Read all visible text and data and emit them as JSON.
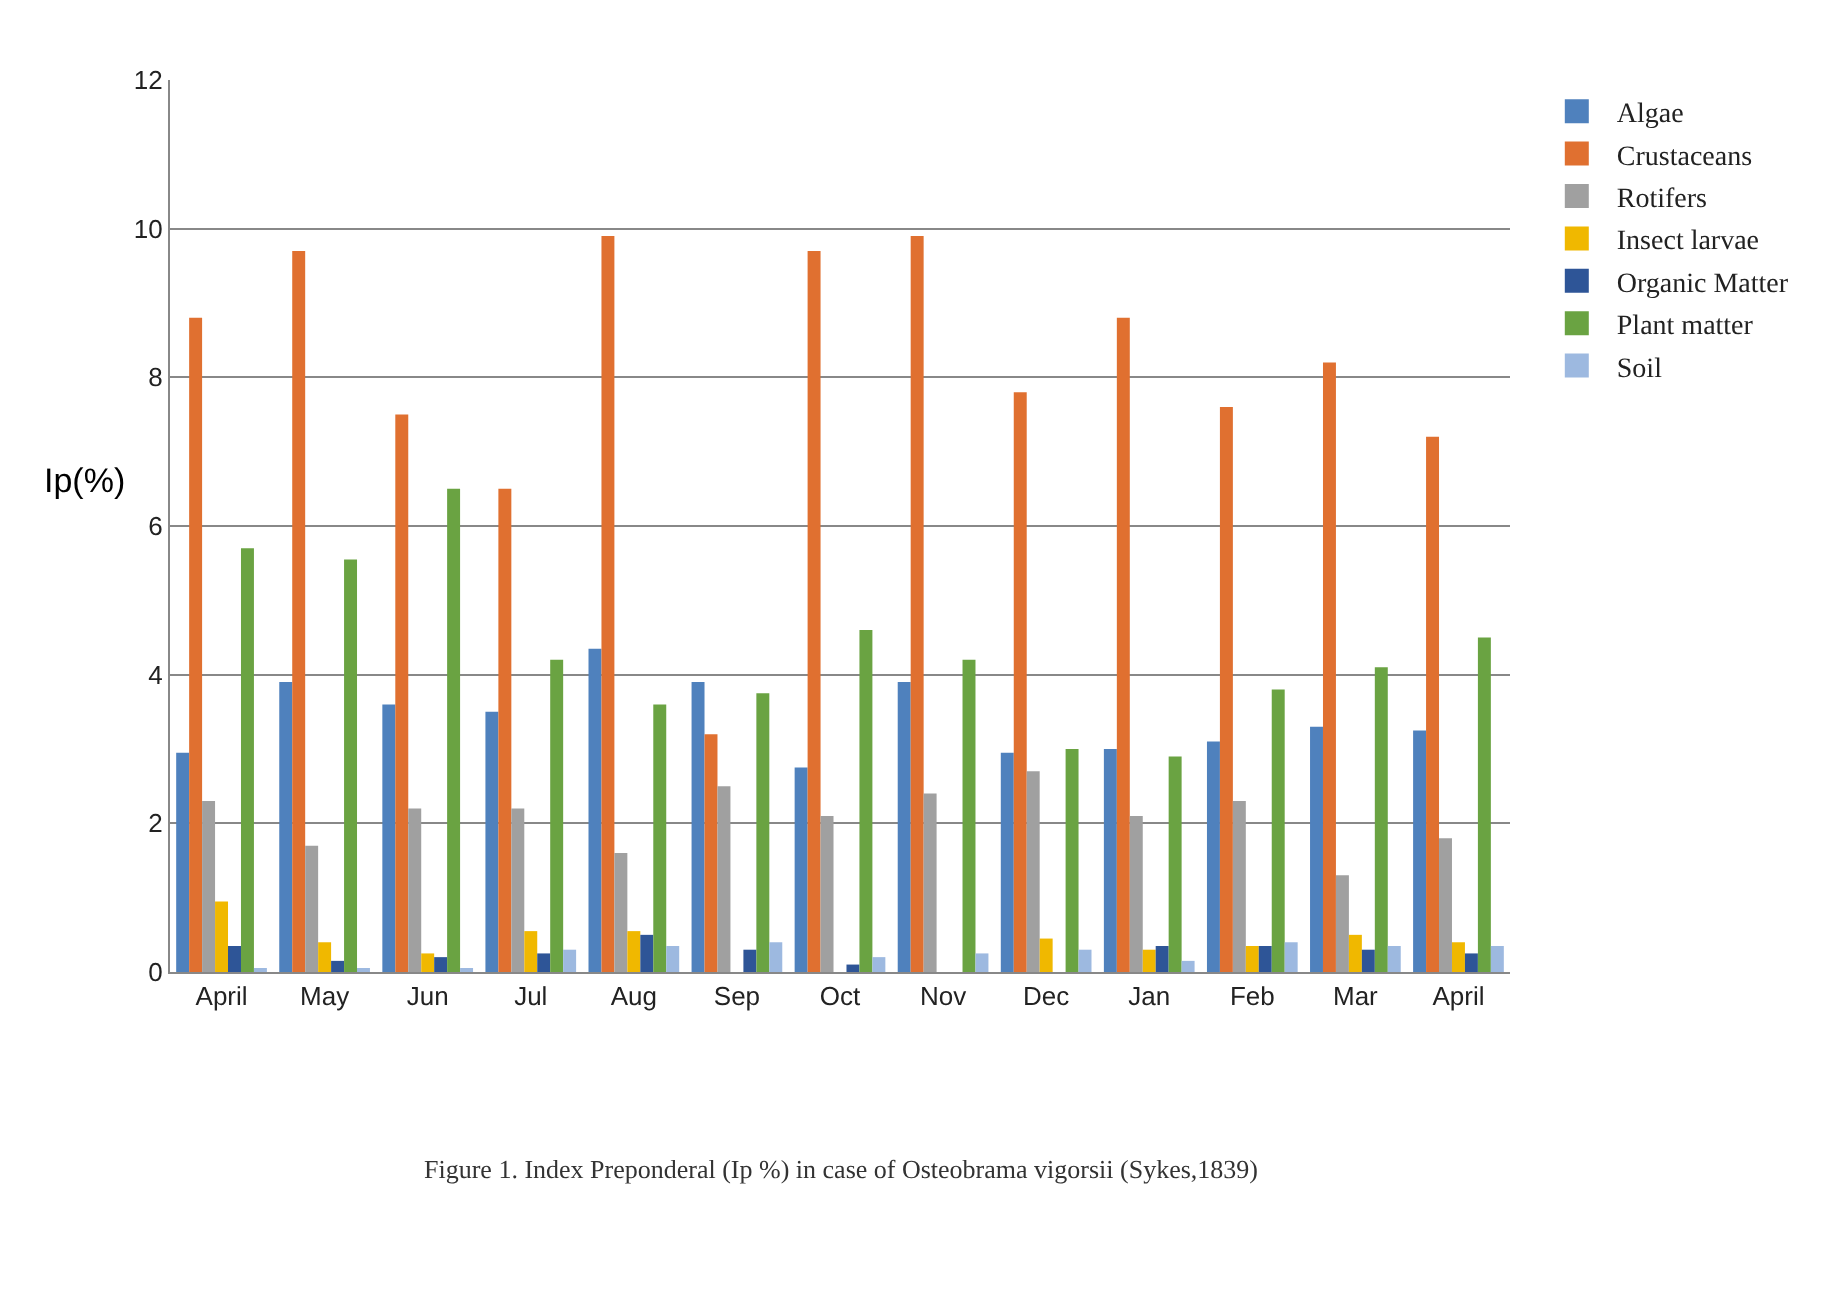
{
  "chart_data": {
    "type": "bar",
    "ylabel": "Ip(%)",
    "categories": [
      "April",
      "May",
      "Jun",
      "Jul",
      "Aug",
      "Sep",
      "Oct",
      "Nov",
      "Dec",
      "Jan",
      "Feb",
      "Mar",
      "April"
    ],
    "series": [
      {
        "name": "Algae",
        "color": "#4f81bd",
        "values": [
          2.95,
          3.9,
          3.6,
          3.5,
          4.35,
          3.9,
          2.75,
          3.9,
          2.95,
          3.0,
          3.1,
          3.3,
          3.25
        ]
      },
      {
        "name": "Crustaceans",
        "color": "#e07030",
        "values": [
          8.8,
          9.7,
          7.5,
          6.5,
          9.9,
          3.2,
          9.7,
          9.9,
          7.8,
          8.8,
          7.6,
          8.2,
          7.2
        ]
      },
      {
        "name": "Rotifers",
        "color": "#a0a0a0",
        "values": [
          2.3,
          1.7,
          2.2,
          2.2,
          1.6,
          2.5,
          2.1,
          2.4,
          2.7,
          2.1,
          2.3,
          1.3,
          1.8
        ]
      },
      {
        "name": "Insect larvae",
        "color": "#f0b800",
        "values": [
          0.95,
          0.4,
          0.25,
          0.55,
          0.55,
          0,
          0,
          0,
          0.45,
          0.3,
          0.35,
          0.5,
          0.4
        ]
      },
      {
        "name": "Organic Matter",
        "color": "#2e5597",
        "values": [
          0.35,
          0.15,
          0.2,
          0.25,
          0.5,
          0.3,
          0.1,
          0,
          0,
          0.35,
          0.35,
          0.3,
          0.25
        ]
      },
      {
        "name": "Plant matter",
        "color": "#6aa342",
        "values": [
          5.7,
          5.55,
          6.5,
          4.2,
          3.6,
          3.75,
          4.6,
          4.2,
          3.0,
          2.9,
          3.8,
          4.1,
          4.5
        ]
      },
      {
        "name": "Soil",
        "color": "#9db9e0",
        "values": [
          0.05,
          0.05,
          0.05,
          0.3,
          0.35,
          0.4,
          0.2,
          0.25,
          0.3,
          0.15,
          0.4,
          0.35,
          0.35
        ]
      }
    ],
    "ylim": [
      0,
      12
    ],
    "yticks": [
      0,
      2,
      4,
      6,
      8,
      10,
      12
    ],
    "grid": "y",
    "legend": "right",
    "annotations": [
      "Figure 1. Index Preponderal (Ip %) in case of Osteobrama vigorsii (Sykes,1839)"
    ]
  }
}
